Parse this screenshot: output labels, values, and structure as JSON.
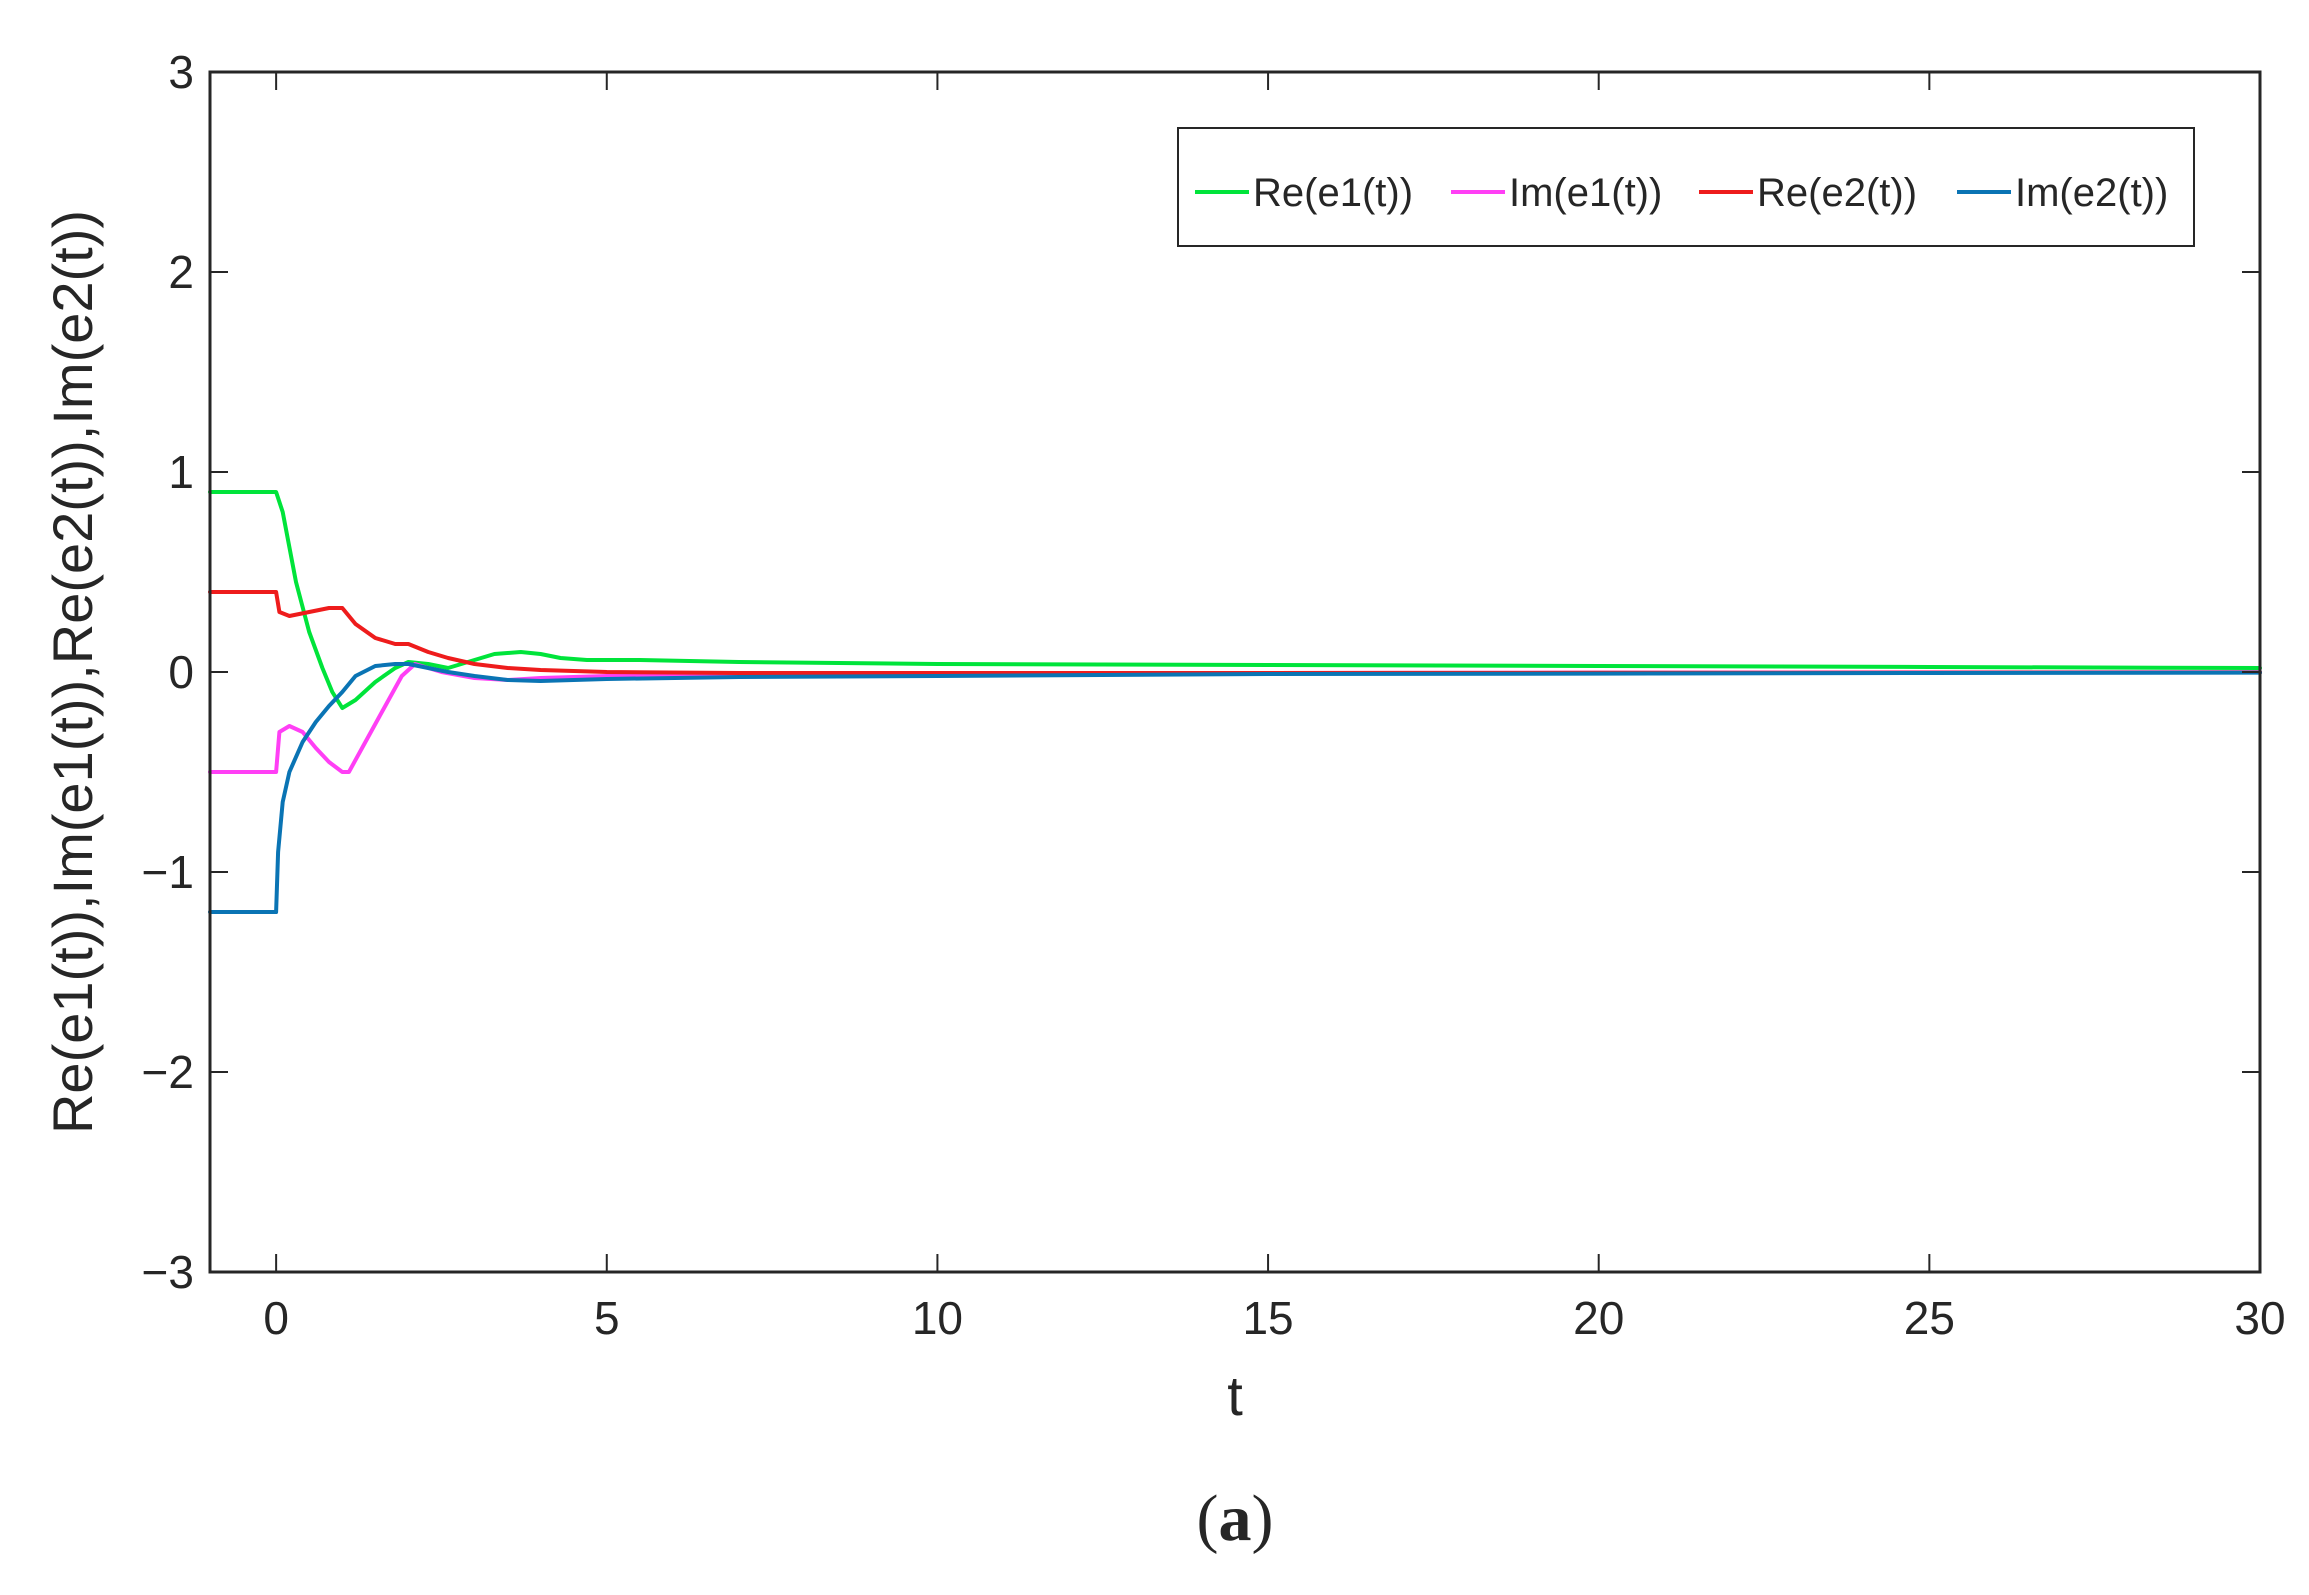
{
  "chart_data": {
    "type": "line",
    "xlabel": "t",
    "ylabel": "Re(e1(t)),Im(e1(t)),Re(e2(t)),Im(e2(t))",
    "xlim": [
      -1,
      30
    ],
    "ylim": [
      -3,
      3
    ],
    "xticks": [
      0,
      5,
      10,
      15,
      20,
      25,
      30
    ],
    "yticks": [
      -3,
      -2,
      -1,
      0,
      1,
      2,
      3
    ],
    "ytick_labels": [
      "−3",
      "−2",
      "−1",
      "0",
      "1",
      "2",
      "3"
    ],
    "grid": false,
    "legend_position": "top-right",
    "caption_parts": [
      "(",
      "a",
      ")"
    ],
    "series": [
      {
        "name": "Re(e1(t))",
        "color": "#00e43a",
        "x": [
          -1,
          0,
          0.1,
          0.3,
          0.5,
          0.7,
          0.85,
          1.0,
          1.2,
          1.5,
          1.8,
          2.0,
          2.3,
          2.6,
          3.0,
          3.3,
          3.7,
          4.0,
          4.3,
          4.7,
          5.5,
          7,
          10,
          15,
          20,
          25,
          30
        ],
        "y": [
          0.9,
          0.9,
          0.8,
          0.45,
          0.2,
          0.02,
          -0.1,
          -0.18,
          -0.14,
          -0.05,
          0.02,
          0.05,
          0.04,
          0.02,
          0.06,
          0.09,
          0.1,
          0.09,
          0.07,
          0.06,
          0.06,
          0.05,
          0.04,
          0.035,
          0.03,
          0.025,
          0.02
        ]
      },
      {
        "name": "Im(e1(t))",
        "color": "#ff3ff5",
        "x": [
          -1,
          0,
          0.05,
          0.2,
          0.4,
          0.6,
          0.8,
          1.0,
          1.1,
          1.3,
          1.6,
          1.9,
          2.1,
          2.5,
          3.0,
          3.5,
          4.0,
          5.0,
          7,
          10,
          15,
          20,
          25,
          30
        ],
        "y": [
          -0.5,
          -0.5,
          -0.3,
          -0.27,
          -0.3,
          -0.38,
          -0.45,
          -0.5,
          -0.5,
          -0.38,
          -0.2,
          -0.02,
          0.04,
          0.0,
          -0.03,
          -0.04,
          -0.03,
          -0.02,
          -0.015,
          -0.01,
          -0.005,
          -0.003,
          -0.002,
          -0.001
        ]
      },
      {
        "name": "Re(e2(t))",
        "color": "#ee1c1c",
        "x": [
          -1,
          0,
          0.05,
          0.2,
          0.5,
          0.8,
          1.0,
          1.2,
          1.5,
          1.8,
          2.0,
          2.3,
          2.6,
          3.0,
          3.5,
          4.0,
          5.0,
          7,
          10,
          15,
          20,
          25,
          30
        ],
        "y": [
          0.4,
          0.4,
          0.3,
          0.28,
          0.3,
          0.32,
          0.32,
          0.24,
          0.17,
          0.14,
          0.14,
          0.1,
          0.07,
          0.04,
          0.02,
          0.01,
          0.0,
          -0.005,
          -0.005,
          -0.005,
          -0.004,
          -0.003,
          -0.002
        ]
      },
      {
        "name": "Im(e2(t))",
        "color": "#0a74b4",
        "x": [
          -1,
          0,
          0.03,
          0.1,
          0.2,
          0.4,
          0.6,
          0.8,
          1.0,
          1.2,
          1.5,
          1.8,
          2.0,
          2.3,
          2.6,
          3.0,
          3.5,
          4.0,
          4.5,
          5.0,
          7,
          10,
          15,
          20,
          25,
          30
        ],
        "y": [
          -1.2,
          -1.2,
          -0.9,
          -0.65,
          -0.5,
          -0.35,
          -0.25,
          -0.17,
          -0.1,
          -0.02,
          0.03,
          0.04,
          0.04,
          0.02,
          0.0,
          -0.02,
          -0.04,
          -0.045,
          -0.04,
          -0.035,
          -0.025,
          -0.02,
          -0.01,
          -0.008,
          -0.005,
          -0.003
        ]
      }
    ]
  }
}
